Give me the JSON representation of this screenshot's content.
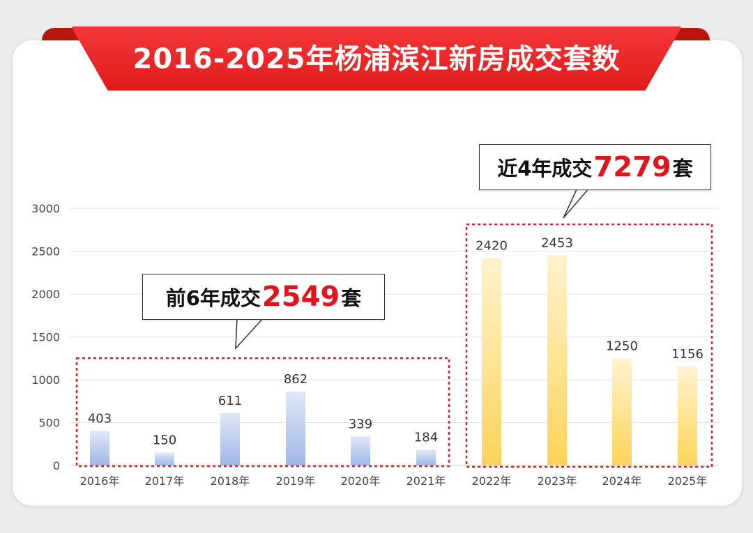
{
  "banner": {
    "title": "2016-2025年杨浦滨江新房成交套数"
  },
  "callouts": {
    "left": {
      "prefix": "前6年成交",
      "number": "2549",
      "suffix": "套"
    },
    "right": {
      "prefix": "近4年成交",
      "number": "7279",
      "suffix": "套"
    }
  },
  "colors": {
    "banner": "#e8221f",
    "highlight_number": "#e0141b",
    "bar_blue_top": "#dfe8f7",
    "bar_blue_bottom": "#9fb6e6",
    "bar_yellow_top": "#fff3cf",
    "bar_yellow_bottom": "#fbd45a",
    "dashed_box": "#d6212a"
  },
  "chart_data": {
    "type": "bar",
    "title": "2016-2025年杨浦滨江新房成交套数",
    "xlabel": "",
    "ylabel": "",
    "ylim": [
      0,
      3000
    ],
    "yticks": [
      0,
      500,
      1000,
      1500,
      2000,
      2500,
      3000
    ],
    "grid": true,
    "categories": [
      "2016年",
      "2017年",
      "2018年",
      "2019年",
      "2020年",
      "2021年",
      "2022年",
      "2023年",
      "2024年",
      "2025年"
    ],
    "values": [
      403,
      150,
      611,
      862,
      339,
      184,
      2420,
      2453,
      1250,
      1156
    ],
    "groups": [
      {
        "label": "前6年成交2549套",
        "categories": [
          "2016年",
          "2017年",
          "2018年",
          "2019年",
          "2020年",
          "2021年"
        ],
        "color": "blue"
      },
      {
        "label": "近4年成交7279套",
        "categories": [
          "2022年",
          "2023年",
          "2024年",
          "2025年"
        ],
        "color": "yellow"
      }
    ]
  }
}
